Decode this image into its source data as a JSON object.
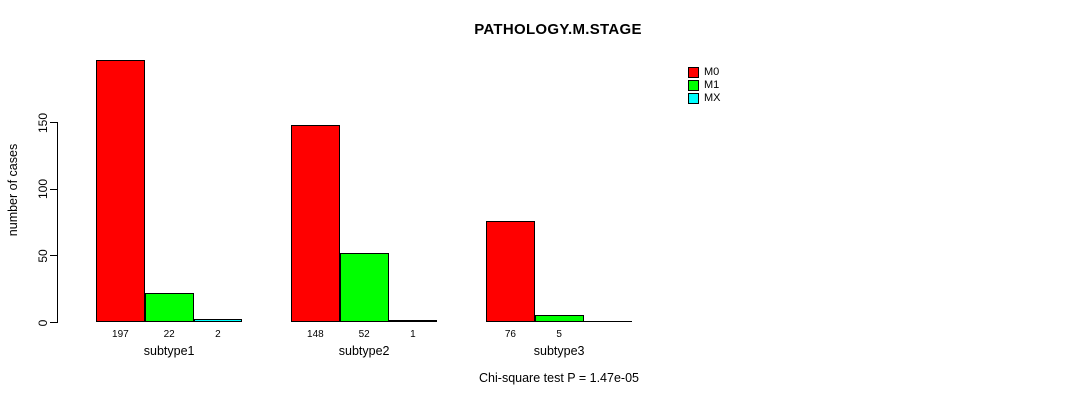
{
  "chart_data": {
    "type": "bar",
    "title": "PATHOLOGY.M.STAGE",
    "xlabel": "",
    "ylabel": "number of cases",
    "footnote": "Chi-square test P = 1.47e-05",
    "categories": [
      "subtype1",
      "subtype2",
      "subtype3"
    ],
    "series": [
      {
        "name": "M0",
        "color": "#ff0000",
        "values": [
          197,
          148,
          76
        ]
      },
      {
        "name": "M1",
        "color": "#00ff00",
        "values": [
          22,
          52,
          5
        ]
      },
      {
        "name": "MX",
        "color": "#00ffff",
        "values": [
          2,
          1,
          0
        ]
      }
    ],
    "bar_value_labels": [
      [
        "197",
        "22",
        "2"
      ],
      [
        "148",
        "52",
        "1"
      ],
      [
        "76",
        "5",
        ""
      ]
    ],
    "yticks": [
      0,
      50,
      100,
      150
    ],
    "ylim": [
      0,
      200
    ],
    "grid": false,
    "legend_position": "top-right",
    "background_color": "#ffffff",
    "axis_color": "#000000"
  }
}
